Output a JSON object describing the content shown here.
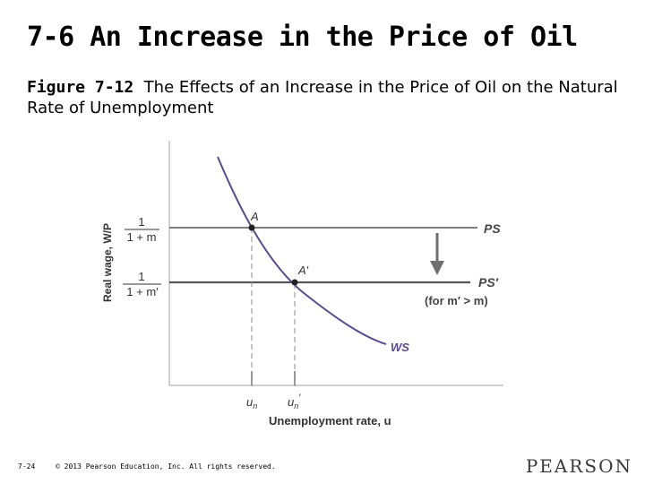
{
  "slide": {
    "title": "7-6 An Increase in the Price of Oil",
    "figure_label": "Figure 7-12",
    "figure_caption": "The Effects of an Increase in the Price of Oil on the Natural Rate of Unemployment"
  },
  "diagram": {
    "y_axis_label": "Real wage, W/P",
    "x_axis_label": "Unemployment rate, u",
    "ps_curve": {
      "label": "PS",
      "fraction_numerator": "1",
      "fraction_denominator": "1 + m"
    },
    "ps_prime_curve": {
      "label": "PS′",
      "note": "(for m′ > m)",
      "fraction_numerator": "1",
      "fraction_denominator": "1 + m′"
    },
    "ws_curve": {
      "label": "WS"
    },
    "points": [
      {
        "label": "A"
      },
      {
        "label": "A′"
      }
    ],
    "x_ticks": {
      "un": {
        "base": "u",
        "sub": "n",
        "prime": ""
      },
      "un_prime": {
        "base": "u",
        "sub": "n",
        "prime": "′"
      }
    },
    "colors": {
      "ws": "#5b4a8c",
      "lines": "#555555",
      "axes": "#b3b3b3",
      "dashed": "#8c8c8c"
    }
  },
  "footer": {
    "slide_number": "7-24",
    "copyright": "© 2013 Pearson Education, Inc. All rights reserved.",
    "brand": "PEARSON"
  }
}
